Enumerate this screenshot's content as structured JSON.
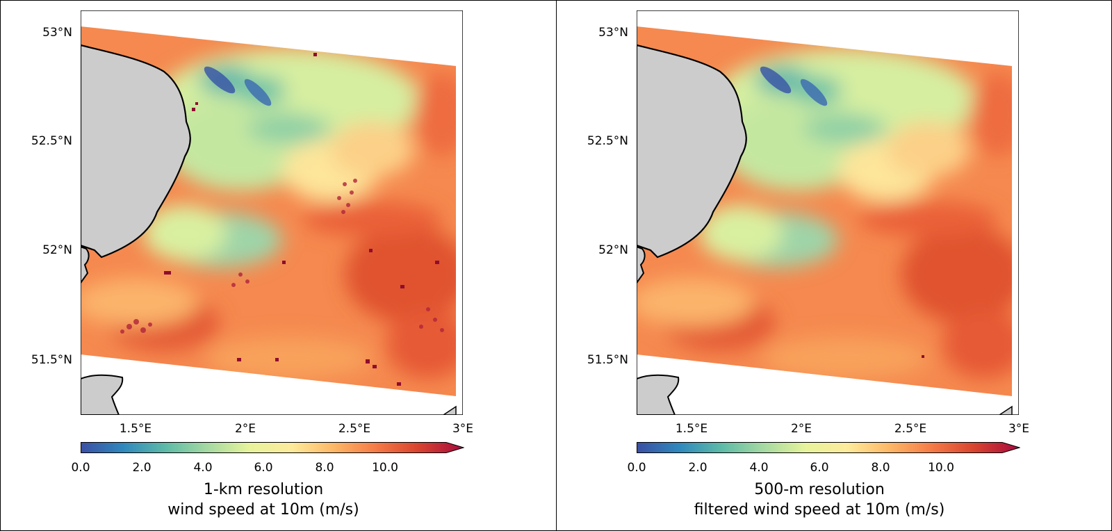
{
  "colormap": {
    "name": "Spectral_r",
    "stops": [
      "#3b4fa3",
      "#2f88bd",
      "#5dbaa7",
      "#a5d9a2",
      "#e7f39b",
      "#fdeb9c",
      "#fdb867",
      "#f57b47",
      "#d9442f",
      "#a60b3d"
    ],
    "ticks": [
      "0.0",
      "2.0",
      "4.0",
      "6.0",
      "8.0",
      "10.0"
    ],
    "extend": "max"
  },
  "land_color": "#cccccc",
  "axes": {
    "lat_ticks": [
      "53°N",
      "52.5°N",
      "52°N",
      "51.5°N"
    ],
    "lon_ticks": [
      "1.5°E",
      "2°E",
      "2.5°E",
      "3°E"
    ]
  },
  "panels": [
    {
      "caption_line1": "1-km resolution",
      "caption_line2": "wind speed at 10m (m/s)",
      "variant": "coarse"
    },
    {
      "caption_line1": "500-m resolution",
      "caption_line2": "filtered wind speed at 10m (m/s)",
      "variant": "filtered"
    }
  ]
}
